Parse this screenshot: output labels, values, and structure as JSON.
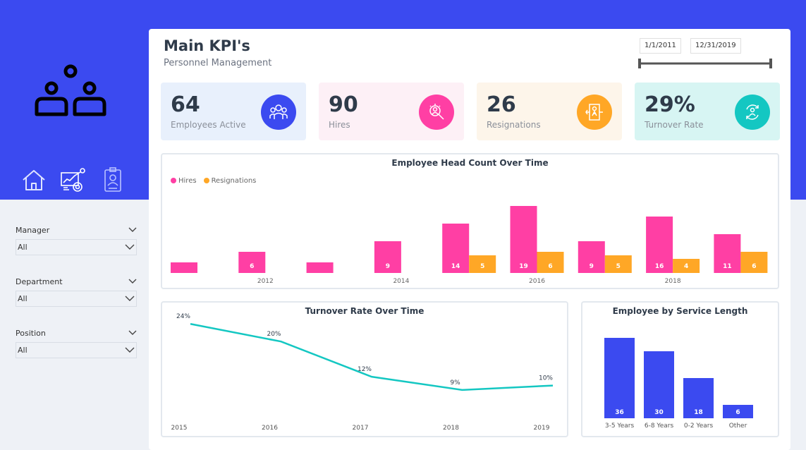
{
  "sidebar": {
    "nav_items": [
      "home",
      "dashboard",
      "badge"
    ],
    "filters": [
      {
        "label": "Manager",
        "value": "All"
      },
      {
        "label": "Department",
        "value": "All"
      },
      {
        "label": "Position",
        "value": "All"
      }
    ]
  },
  "header": {
    "title": "Main KPI's",
    "subtitle": "Personnel Management",
    "date_start": "1/1/2011",
    "date_end": "12/31/2019"
  },
  "kpis": [
    {
      "value": "64",
      "label": "Employees Active",
      "icon": "group-icon",
      "bg": "#e8f0fc",
      "accent": "#3b4af0"
    },
    {
      "value": "90",
      "label": "Hires",
      "icon": "hire-search-icon",
      "bg": "#fdf0f6",
      "accent": "#ff3fa4"
    },
    {
      "value": "26",
      "label": "Resignations",
      "icon": "exit-door-icon",
      "bg": "#fdf5ea",
      "accent": "#ffa726"
    },
    {
      "value": "29%",
      "label": "Turnover Rate",
      "icon": "turnover-icon",
      "bg": "#d7f5f3",
      "accent": "#14c7c2"
    }
  ],
  "chart_data": [
    {
      "type": "bar",
      "title": "Employee Head Count Over Time",
      "categories": [
        "2011",
        "2012",
        "2013",
        "2014",
        "2015",
        "2016",
        "2017",
        "2018",
        "2019"
      ],
      "x_tick_labels": [
        "2012",
        "2014",
        "2016",
        "2018"
      ],
      "series": [
        {
          "name": "Hires",
          "color": "#ff3fa4",
          "values": [
            3,
            6,
            3,
            9,
            14,
            19,
            9,
            16,
            11
          ],
          "labels": [
            "",
            "6",
            "",
            "9",
            "14",
            "19",
            "9",
            "16",
            "11"
          ]
        },
        {
          "name": "Resignations",
          "color": "#ffa726",
          "values": [
            0,
            0,
            0,
            0,
            5,
            6,
            5,
            4,
            6
          ],
          "labels": [
            "",
            "",
            "",
            "",
            "5",
            "6",
            "5",
            "4",
            "6"
          ]
        }
      ],
      "ylim": [
        0,
        19
      ]
    },
    {
      "type": "line",
      "title": "Turnover Rate Over Time",
      "x": [
        "2015",
        "2016",
        "2017",
        "2018",
        "2019"
      ],
      "series": [
        {
          "values": [
            24,
            20,
            12,
            9,
            10
          ],
          "labels": [
            "24%",
            "20%",
            "12%",
            "9%",
            "10%"
          ],
          "color": "#14c7c2"
        }
      ],
      "ylim": [
        0,
        25
      ]
    },
    {
      "type": "bar",
      "title": "Employee by Service Length",
      "categories": [
        "3-5 Years",
        "6-8 Years",
        "0-2 Years",
        "Other"
      ],
      "values": [
        36,
        30,
        18,
        6
      ],
      "color": "#3b4af0",
      "ylim": [
        0,
        36
      ]
    }
  ]
}
